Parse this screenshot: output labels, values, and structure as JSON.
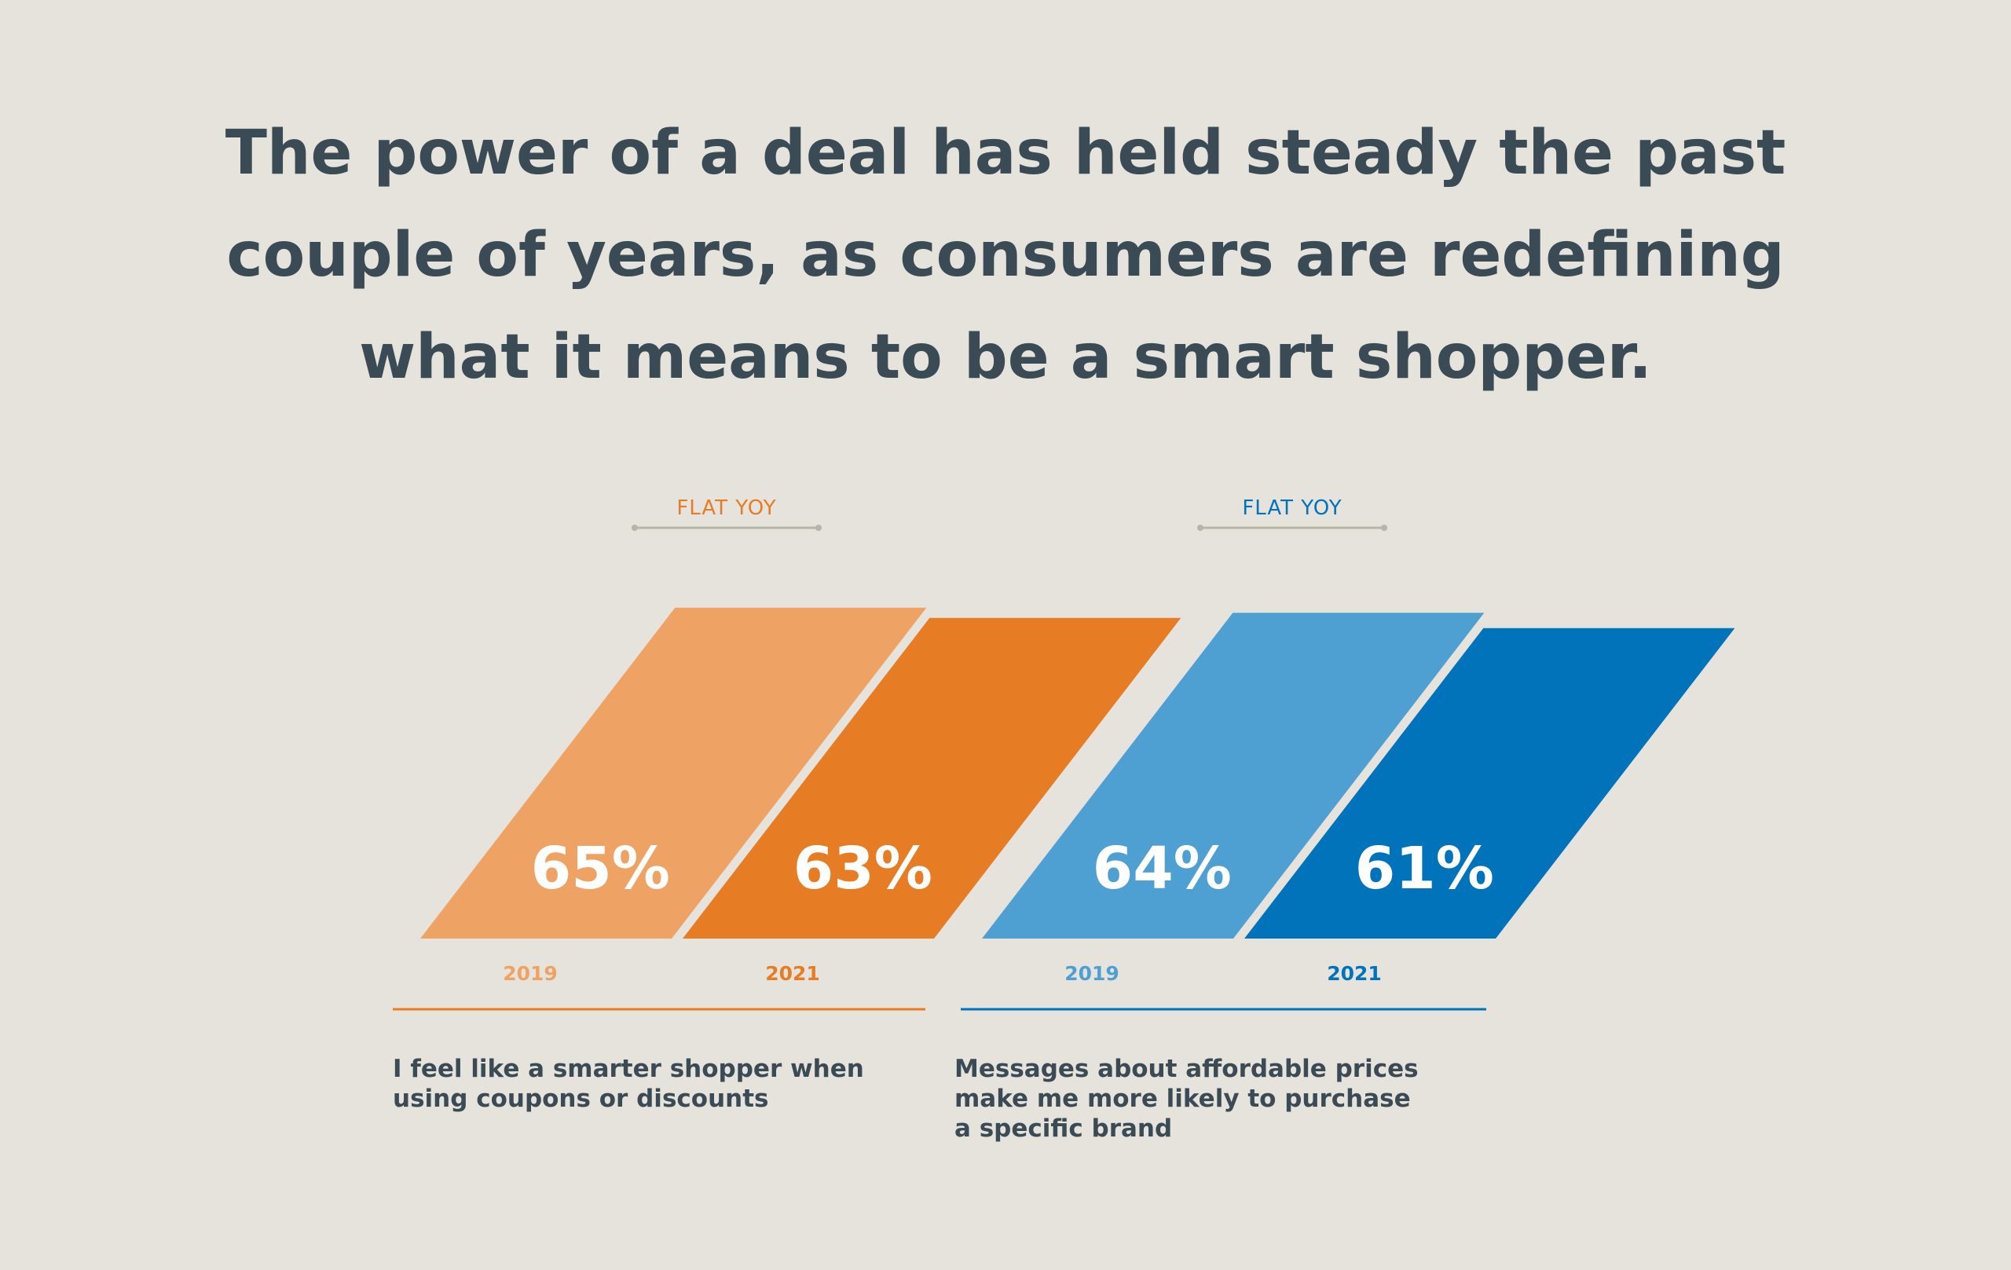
{
  "headline": {
    "lines": [
      "The power of a deal has held steady the past",
      "couple of years, as consumers are redefining",
      "what it means to be a smart shopper."
    ]
  },
  "colors": {
    "background": "#e6e3dd",
    "text": "#3b4b55",
    "bracket": "#b8b4a8",
    "orange_light": "#eea364",
    "orange_dark": "#e67c23",
    "blue_light": "#4e9fd2",
    "blue_dark": "#0073ba"
  },
  "chart_data": {
    "type": "bar",
    "groups": [
      {
        "caption_lines": [
          "I feel like a smarter shopper when",
          "using coupons or discounts"
        ],
        "annotation": "FLAT YOY",
        "bars": [
          {
            "year": "2019",
            "value": 65,
            "label": "65%",
            "color": "#eea364",
            "year_color": "#eea364"
          },
          {
            "year": "2021",
            "value": 63,
            "label": "63%",
            "color": "#e67c23",
            "year_color": "#e67c23"
          }
        ],
        "rule_color": "#e67c23",
        "annotation_color": "#e67c23"
      },
      {
        "caption_lines": [
          "Messages about affordable prices",
          "make me more likely to purchase",
          "a specific brand"
        ],
        "annotation": "FLAT YOY",
        "bars": [
          {
            "year": "2019",
            "value": 64,
            "label": "64%",
            "color": "#4e9fd2",
            "year_color": "#4e9fd2"
          },
          {
            "year": "2021",
            "value": 61,
            "label": "61%",
            "color": "#0073ba",
            "year_color": "#0073ba"
          }
        ],
        "rule_color": "#0073ba",
        "annotation_color": "#0073ba"
      }
    ]
  }
}
